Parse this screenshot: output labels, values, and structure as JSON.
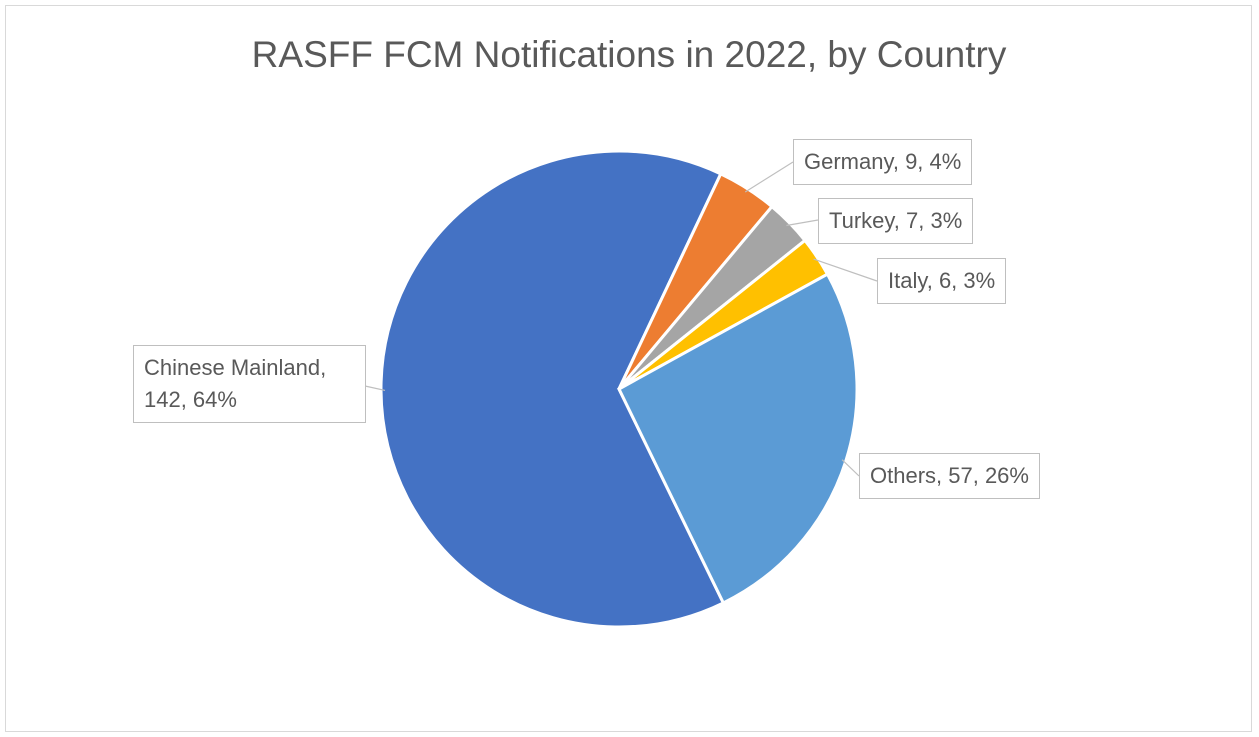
{
  "chart_data": {
    "type": "pie",
    "title": "RASFF FCM Notifications in 2022, by Country",
    "categories": [
      "Chinese Mainland",
      "Germany",
      "Turkey",
      "Italy",
      "Others"
    ],
    "values": [
      142,
      9,
      7,
      6,
      57
    ],
    "value_labels": [
      "Chinese Mainland, 142, 64%",
      "Germany, 9, 4%",
      "Turkey, 7, 3%",
      "Italy, 6, 3%",
      "Others, 57, 26%"
    ],
    "colors": [
      "#4472c4",
      "#ed7d31",
      "#a5a5a5",
      "#ffc000",
      "#5b9bd5"
    ],
    "start_angle": 154
  }
}
